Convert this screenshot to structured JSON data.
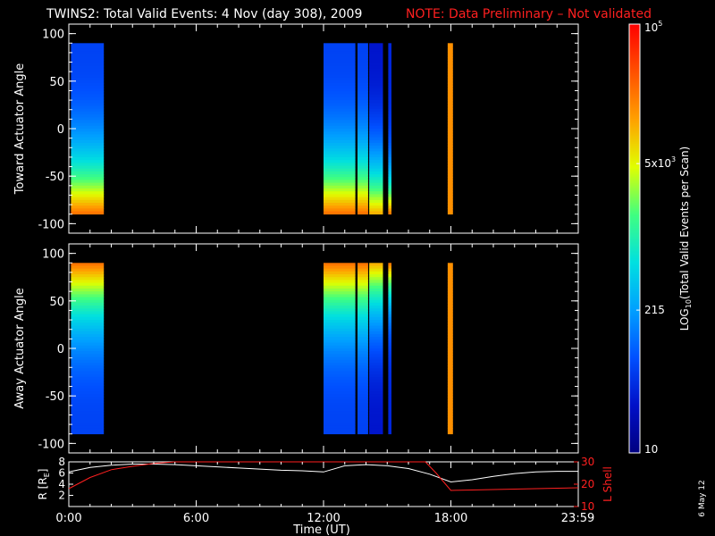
{
  "header": {
    "title": "TWINS2: Total Valid Events:  4 Nov (day 308), 2009",
    "note": "NOTE: Data Preliminary – Not validated",
    "note_color": "#ff2020"
  },
  "footer": {
    "date_stamp": "6 May 12"
  },
  "chart_data": [
    {
      "type": "heatmap",
      "panel": "toward",
      "ylabel": "Toward Actuator Angle",
      "ylim": [
        -110,
        110
      ],
      "yticks": [
        -100,
        -50,
        0,
        50,
        100
      ],
      "xlim_hours": [
        0,
        24
      ],
      "bands_hours": [
        [
          0.1,
          1.65
        ],
        [
          12.0,
          13.5
        ],
        [
          13.6,
          14.1
        ],
        [
          14.15,
          14.8
        ],
        [
          15.05,
          15.2
        ],
        [
          17.85,
          18.1
        ]
      ],
      "profile": "low_angle_high"
    },
    {
      "type": "heatmap",
      "panel": "away",
      "ylabel": "Away Actuator Angle",
      "ylim": [
        -110,
        110
      ],
      "yticks": [
        -100,
        -50,
        0,
        50,
        100
      ],
      "xlim_hours": [
        0,
        24
      ],
      "bands_hours": [
        [
          0.1,
          1.65
        ],
        [
          12.0,
          13.5
        ],
        [
          13.6,
          14.1
        ],
        [
          14.15,
          14.8
        ],
        [
          15.05,
          15.2
        ],
        [
          17.85,
          18.1
        ]
      ],
      "profile": "high_angle_high"
    },
    {
      "type": "line",
      "panel": "orbit",
      "ylabel": "R [R",
      "ylabel_sub": "E",
      "ylabel_end": "]",
      "ylim": [
        0,
        8
      ],
      "yticks": [
        2,
        4,
        6,
        8
      ],
      "y2label": "L Shell",
      "y2lim": [
        10,
        30
      ],
      "y2ticks": [
        10,
        20,
        30
      ],
      "y2color": "#ff2020",
      "xlabel": "Time (UT)",
      "xticks": [
        "0:00",
        "6:00",
        "12:00",
        "18:00",
        "23:59"
      ],
      "xtick_hours": [
        0,
        6,
        12,
        18,
        23.98
      ],
      "series": [
        {
          "axis": "left",
          "color": "#ffffff",
          "x": [
            0,
            1,
            2,
            3,
            4,
            5,
            6,
            7,
            8,
            9,
            10,
            11,
            12,
            13,
            14,
            15,
            16,
            17,
            18,
            19,
            20,
            21,
            22,
            23,
            24
          ],
          "values": [
            6.2,
            7.0,
            7.4,
            7.6,
            7.6,
            7.5,
            7.3,
            7.1,
            6.9,
            6.7,
            6.5,
            6.4,
            6.2,
            7.3,
            7.5,
            7.3,
            6.8,
            5.8,
            4.4,
            4.8,
            5.4,
            5.9,
            6.2,
            6.3,
            6.3
          ]
        },
        {
          "axis": "right",
          "color": "#ff2020",
          "x": [
            0,
            1,
            2,
            3,
            4,
            5,
            6,
            7,
            8,
            9,
            16.8,
            17.3,
            18,
            19,
            20,
            21,
            22,
            23,
            24
          ],
          "values": [
            18,
            23,
            26.5,
            28,
            29.3,
            30,
            30.5,
            31,
            31,
            31,
            31,
            25,
            17.2,
            17.4,
            17.6,
            17.8,
            18,
            18.2,
            18.4
          ]
        }
      ]
    }
  ],
  "colorbar": {
    "label": "LOG",
    "label_sub": "10",
    "label_rest": "(Total Valid Events per Scan)",
    "ticks": [
      {
        "value": 100000,
        "text": "10",
        "sup": "5"
      },
      {
        "value": 5000,
        "text": "5x10",
        "sup": "3"
      },
      {
        "value": 215,
        "text": "215",
        "sup": ""
      },
      {
        "value": 10,
        "text": "10",
        "sup": ""
      }
    ],
    "range": [
      10,
      100000
    ],
    "colormap": [
      "#000080",
      "#0010c8",
      "#0050ff",
      "#00a0ff",
      "#00e0e0",
      "#40ff80",
      "#e0ff00",
      "#ffa000",
      "#ff5000",
      "#ff0000"
    ]
  }
}
